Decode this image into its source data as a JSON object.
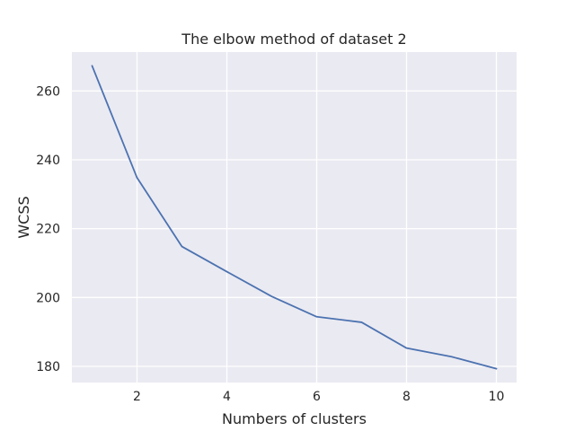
{
  "chart_data": {
    "type": "line",
    "title": "The elbow method of dataset 2",
    "xlabel": "Numbers of clusters",
    "ylabel": "WCSS",
    "x": [
      1,
      2,
      3,
      4,
      5,
      6,
      7,
      8,
      9,
      10
    ],
    "series": [
      {
        "values": [
          267.3,
          234.8,
          214.8,
          207.5,
          200.3,
          194.4,
          192.8,
          185.3,
          182.8,
          179.3
        ],
        "color": "#4c72b0"
      }
    ],
    "xlim": [
      0.55,
      10.45
    ],
    "ylim": [
      175.3,
      271.3
    ],
    "x_ticks": [
      2,
      4,
      6,
      8,
      10
    ],
    "y_ticks": [
      180,
      200,
      220,
      240,
      260
    ],
    "grid": true,
    "style": {
      "background": "#eaeaf2",
      "grid_color": "#ffffff",
      "text_color": "#262626"
    }
  }
}
